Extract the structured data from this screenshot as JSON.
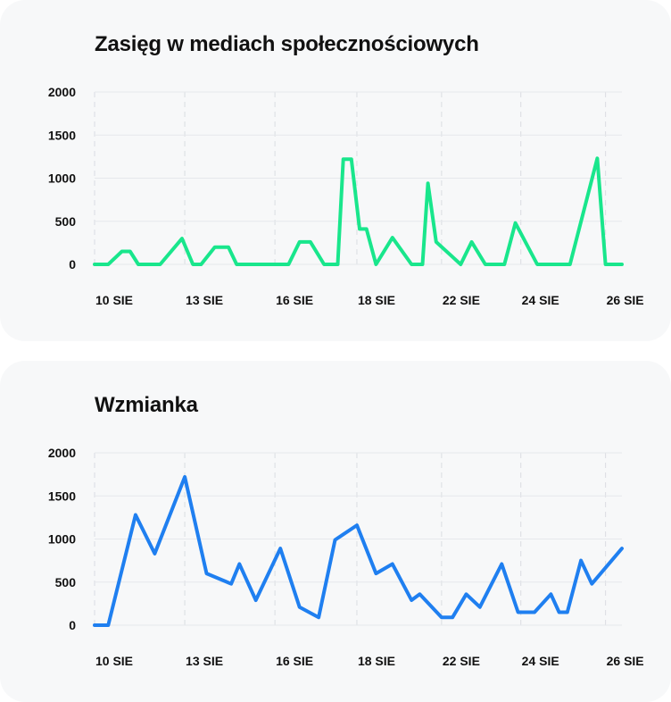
{
  "colors": {
    "reach_line": "#19e68c",
    "mentions_line": "#1f7ff0",
    "grid": "#e6e8ec",
    "vgrid": "#dadde2"
  },
  "chart_data": [
    {
      "type": "line",
      "title": "Zasięg w mediach społecznościowych",
      "ylim": [
        0,
        2000
      ],
      "yticks": [
        "0",
        "500",
        "1000",
        "1500",
        "2000"
      ],
      "xticks": [
        "10 SIE",
        "13 SIE",
        "16 SIE",
        "18 SIE",
        "22 SIE",
        "24 SIE",
        "26 SIE"
      ],
      "series": [
        {
          "x": [
            0,
            0.5,
            1.0,
            1.3,
            1.6,
            1.9,
            2.4,
            3.2,
            3.6,
            3.9,
            4.4,
            4.9,
            5.2,
            5.7,
            6.6,
            7.1,
            7.5,
            7.9,
            8.4,
            8.9,
            9.1,
            9.4,
            9.7,
            9.95,
            10.3,
            10.9,
            11.6,
            12.0,
            12.2,
            12.5,
            13.4,
            13.8,
            14.3,
            15.0,
            15.4,
            16.2,
            17.4,
            18.4,
            18.7,
            19.3
          ],
          "values": [
            0,
            0,
            150,
            150,
            0,
            0,
            0,
            300,
            0,
            0,
            200,
            200,
            0,
            0,
            0,
            0,
            260,
            260,
            0,
            0,
            1220,
            1220,
            410,
            410,
            0,
            310,
            0,
            0,
            940,
            260,
            0,
            260,
            0,
            0,
            480,
            0,
            0,
            1230,
            0,
            0
          ]
        }
      ]
    },
    {
      "type": "line",
      "title": "Wzmianka",
      "ylim": [
        0,
        2000
      ],
      "yticks": [
        "0",
        "500",
        "1000",
        "1500",
        "2000"
      ],
      "xticks": [
        "10 SIE",
        "13 SIE",
        "16 SIE",
        "18 SIE",
        "22 SIE",
        "24 SIE",
        "26 SIE"
      ],
      "series": [
        {
          "x": [
            0,
            0.5,
            1.5,
            2.2,
            3.3,
            4.1,
            5.0,
            5.3,
            5.9,
            6.8,
            7.5,
            8.2,
            8.8,
            9.6,
            10.3,
            10.9,
            11.6,
            11.9,
            12.7,
            13.1,
            13.6,
            14.1,
            14.9,
            14.9,
            15.5,
            16.1,
            16.7,
            17.0,
            17.3,
            17.8,
            18.2,
            19.3
          ],
          "values": [
            0,
            0,
            1280,
            830,
            1720,
            600,
            480,
            710,
            290,
            890,
            210,
            90,
            990,
            1160,
            600,
            710,
            290,
            360,
            90,
            90,
            360,
            210,
            710,
            710,
            150,
            150,
            360,
            150,
            150,
            750,
            480,
            890
          ]
        }
      ]
    }
  ]
}
